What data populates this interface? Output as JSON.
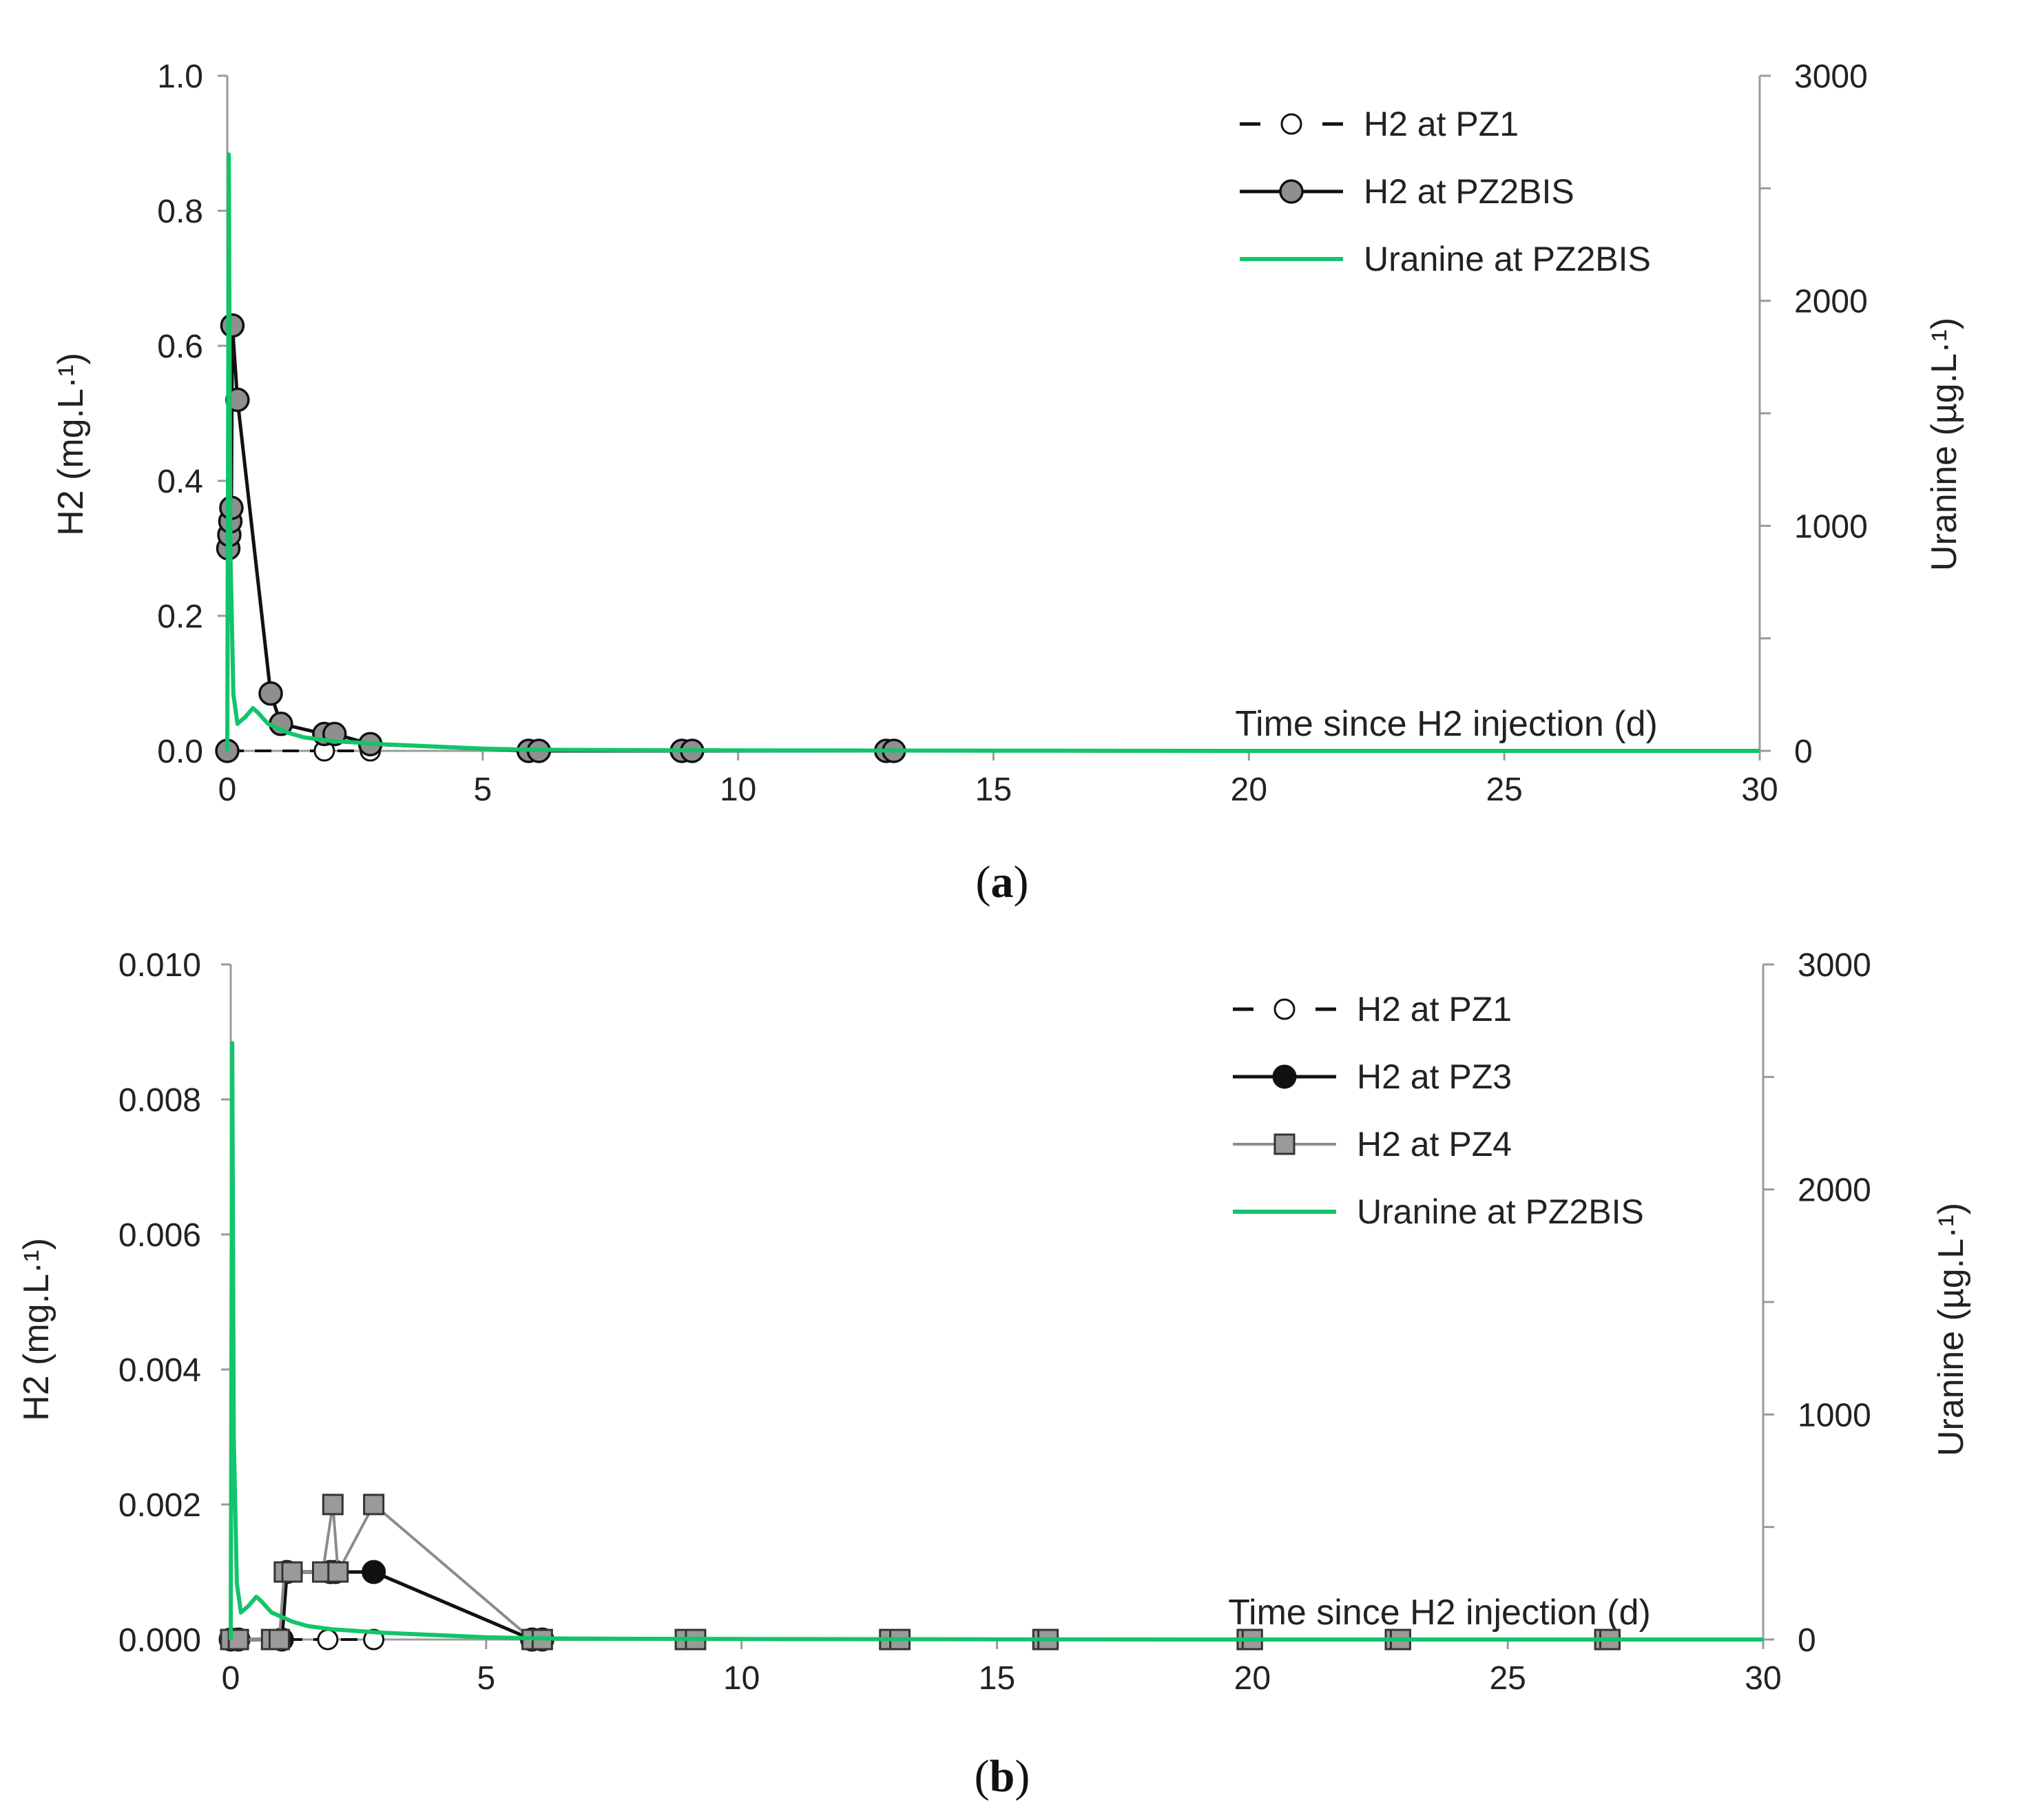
{
  "chart_data": [
    {
      "type": "line",
      "panel_label": "a",
      "xlabel": "Time since H2 injection (d)",
      "ylabel": "H2 (mg.L·¹)",
      "y2label": "Uranine (µg.L·¹)",
      "xlim": [
        0,
        30
      ],
      "ylim": [
        0,
        1.0
      ],
      "y2lim": [
        0,
        3000
      ],
      "xticks": [
        "0",
        "5",
        "10",
        "15",
        "20",
        "25",
        "30"
      ],
      "yticks": [
        "0.0",
        "0.2",
        "0.4",
        "0.6",
        "0.8",
        "1.0"
      ],
      "y2ticks": [
        "0",
        "1000",
        "2000",
        "3000"
      ],
      "series": [
        {
          "name": "H2 at PZ1",
          "style": "dashed-open-circle",
          "color": "#000000",
          "axis": "left",
          "x": [
            0.0,
            1.9,
            2.8
          ],
          "y": [
            0.0,
            0.0,
            0.0
          ]
        },
        {
          "name": "H2 at PZ2BIS",
          "style": "solid-grey-circle",
          "color": "#000000",
          "axis": "left",
          "x": [
            0.0,
            0.02,
            0.04,
            0.06,
            0.08,
            0.1,
            0.2,
            0.85,
            1.05,
            1.9,
            2.1,
            2.8,
            5.9,
            6.1,
            8.9,
            9.1,
            12.9,
            13.05
          ],
          "y": [
            0.0,
            0.3,
            0.32,
            0.34,
            0.36,
            0.63,
            0.52,
            0.085,
            0.04,
            0.025,
            0.025,
            0.01,
            0.0,
            0.0,
            0.0,
            0.0,
            0.0,
            0.0
          ]
        },
        {
          "name": "Uranine at PZ2BIS",
          "style": "green-line",
          "color": "#12c46b",
          "axis": "right",
          "x": [
            0.0,
            0.03,
            0.06,
            0.12,
            0.2,
            0.35,
            0.5,
            0.6,
            0.8,
            1.0,
            1.2,
            1.5,
            2.0,
            3.0,
            4.0,
            5.0,
            6.0,
            8.0,
            10.0,
            15.0,
            20.0,
            25.0,
            30.0
          ],
          "y": [
            0,
            2650,
            900,
            250,
            120,
            150,
            190,
            170,
            120,
            100,
            80,
            60,
            45,
            30,
            20,
            10,
            5,
            3,
            2,
            1,
            0,
            0,
            0
          ]
        }
      ]
    },
    {
      "type": "line",
      "panel_label": "b",
      "xlabel": "Time since H2 injection (d)",
      "ylabel": "H2 (mg.L·¹)",
      "y2label": "Uranine (µg.L·¹)",
      "xlim": [
        0,
        30
      ],
      "ylim": [
        0,
        0.01
      ],
      "y2lim": [
        0,
        3000
      ],
      "xticks": [
        "0",
        "5",
        "10",
        "15",
        "20",
        "25",
        "30"
      ],
      "yticks": [
        "0.000",
        "0.002",
        "0.004",
        "0.006",
        "0.008",
        "0.010"
      ],
      "y2ticks": [
        "0",
        "1000",
        "2000",
        "3000"
      ],
      "series": [
        {
          "name": "H2 at PZ1",
          "style": "dashed-open-circle",
          "color": "#000000",
          "axis": "left",
          "x": [
            0.0,
            0.15,
            1.9,
            2.8
          ],
          "y": [
            0.0,
            0.0,
            0.0,
            0.0
          ]
        },
        {
          "name": "H2 at PZ3",
          "style": "solid-black-circle",
          "color": "#000000",
          "axis": "left",
          "x": [
            0.0,
            0.15,
            1.0,
            1.1,
            1.95,
            2.05,
            2.8,
            5.9,
            6.1
          ],
          "y": [
            0.0,
            0.0,
            0.0,
            0.001,
            0.001,
            0.001,
            0.001,
            0.0,
            0.0
          ]
        },
        {
          "name": "H2 at PZ4",
          "style": "grey-square",
          "color": "#8c8c8c",
          "axis": "left",
          "x": [
            0.0,
            0.15,
            0.8,
            0.95,
            1.05,
            1.2,
            1.8,
            2.0,
            2.1,
            2.8,
            5.9,
            6.1,
            8.9,
            9.1,
            12.9,
            13.1,
            15.9,
            16.0,
            19.9,
            20.0,
            22.8,
            22.9,
            26.9,
            27.0
          ],
          "y": [
            0.0,
            0.0,
            0.0,
            0.0,
            0.001,
            0.001,
            0.001,
            0.002,
            0.001,
            0.002,
            0.0,
            0.0,
            0.0,
            0.0,
            0.0,
            0.0,
            0.0,
            0.0,
            0.0,
            0.0,
            0.0,
            0.0,
            0.0,
            0.0
          ]
        },
        {
          "name": "Uranine at PZ2BIS",
          "style": "green-line",
          "color": "#12c46b",
          "axis": "right",
          "x": [
            0.0,
            0.03,
            0.06,
            0.12,
            0.2,
            0.35,
            0.5,
            0.6,
            0.8,
            1.0,
            1.2,
            1.5,
            2.0,
            3.0,
            4.0,
            5.0,
            6.0,
            8.0,
            10.0,
            15.0,
            20.0,
            25.0,
            30.0
          ],
          "y": [
            0,
            2650,
            900,
            250,
            120,
            150,
            190,
            170,
            120,
            100,
            80,
            60,
            45,
            30,
            20,
            10,
            5,
            3,
            2,
            1,
            0,
            0,
            0
          ]
        }
      ]
    }
  ]
}
